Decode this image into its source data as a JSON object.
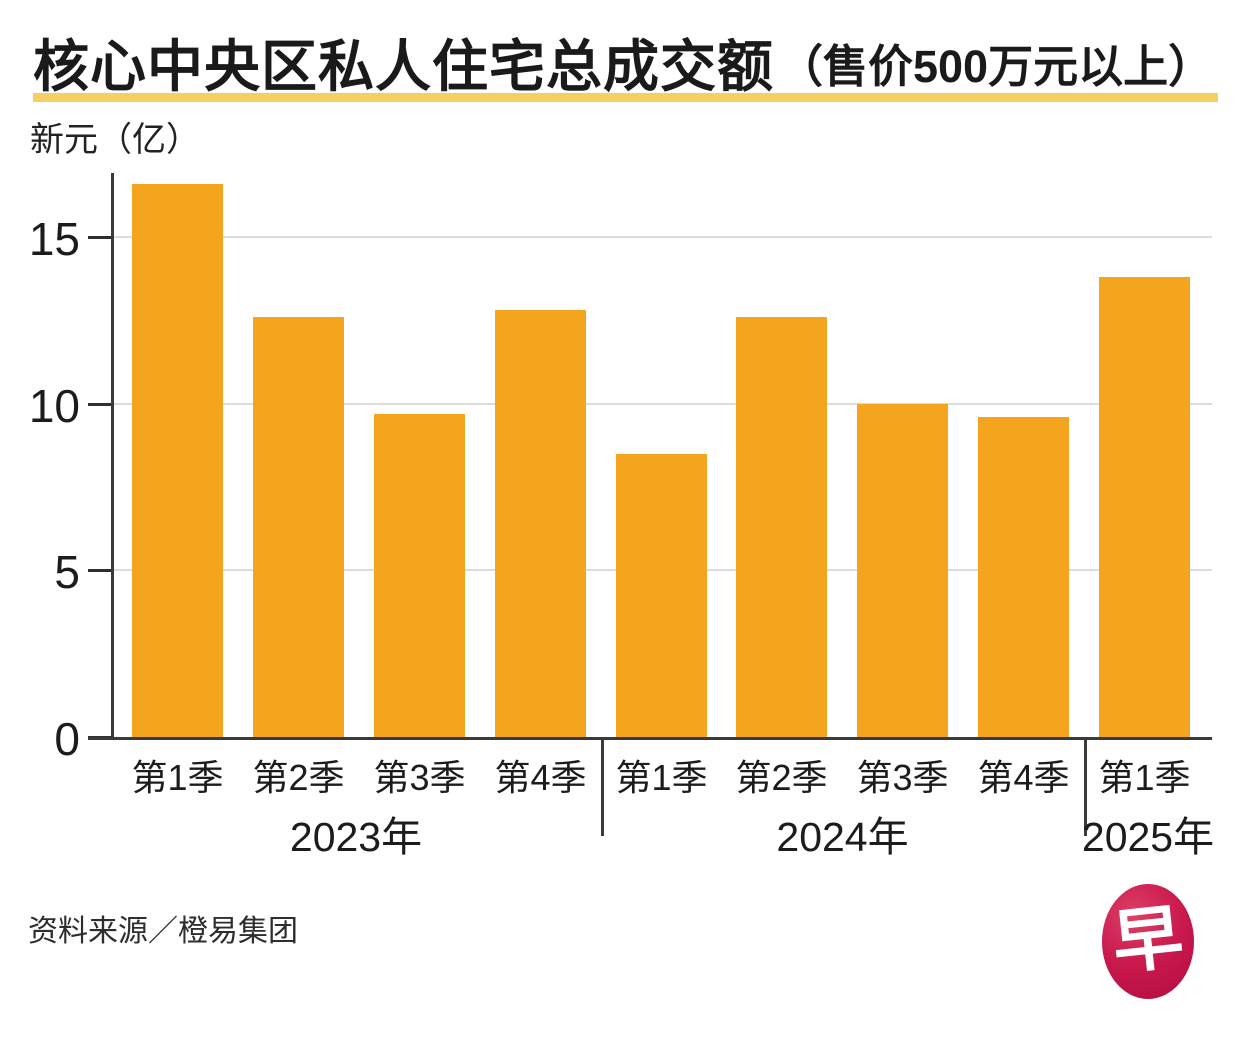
{
  "header": {
    "title_main": "核心中央区私人住宅总成交额",
    "title_paren": "（售价500万元以上）",
    "unit_label": "新元（亿）"
  },
  "chart_data": {
    "type": "bar",
    "title": "核心中央区私人住宅总成交额（售价500万元以上）",
    "ylabel": "新元（亿）",
    "categories": [
      "第1季",
      "第2季",
      "第3季",
      "第4季",
      "第1季",
      "第2季",
      "第3季",
      "第4季",
      "第1季"
    ],
    "groups": [
      {
        "label": "2023年",
        "count": 4
      },
      {
        "label": "2024年",
        "count": 4
      },
      {
        "label": "2025年",
        "count": 1
      }
    ],
    "values": [
      16.6,
      12.6,
      9.7,
      12.8,
      8.5,
      12.6,
      10.0,
      9.6,
      13.8
    ],
    "yticks": [
      0,
      5,
      10,
      15
    ],
    "ylim": [
      0,
      16.9
    ],
    "grid": true,
    "legend": "none",
    "bar_color": "#F5A41E",
    "gridline_color": "#dcdcdc",
    "axis_color": "#3a3a3a"
  },
  "footer": {
    "source": "资料来源／橙易集团",
    "logo_char": "早",
    "logo_color": "#c4134b"
  },
  "colors": {
    "accent_bar": "#F5A41E",
    "title_rule": "#F6CE62",
    "logo_red": "#c4134b",
    "text": "#1c1c1c"
  }
}
